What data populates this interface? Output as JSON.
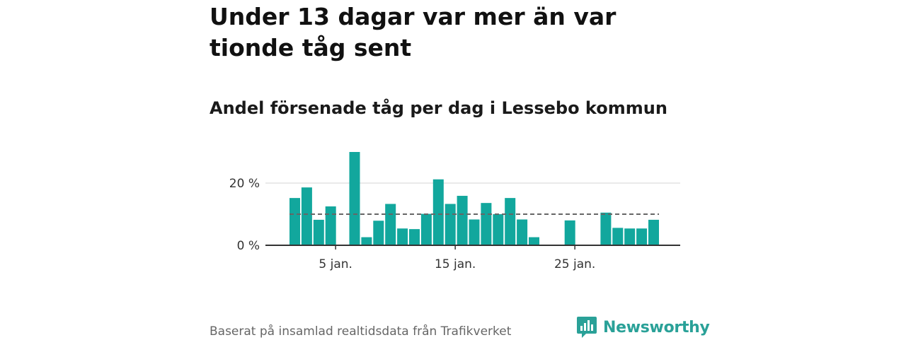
{
  "title": "Under 13 dagar var mer än var tionde tåg sent",
  "subtitle": "Andel försenade tåg per dag i Lessebo kommun",
  "footer": "Baserat på insamlad realtidsdata från Trafikverket",
  "brand": {
    "name": "Newsworthy",
    "icon": "newsworthy-logo-icon"
  },
  "colors": {
    "bar": "#12a79d",
    "reference_line": "#666666",
    "grid": "#dddddd",
    "axis": "#333333",
    "brand": "#2aa198"
  },
  "chart_data": {
    "type": "bar",
    "title": "Under 13 dagar var mer än var tionde tåg sent",
    "subtitle": "Andel försenade tåg per dag i Lessebo kommun",
    "xlabel": "",
    "ylabel": "",
    "x": [
      1,
      2,
      3,
      4,
      5,
      6,
      7,
      8,
      9,
      10,
      11,
      12,
      13,
      14,
      15,
      16,
      17,
      18,
      19,
      20,
      21,
      22,
      23,
      24,
      25,
      26,
      27,
      28,
      29,
      30,
      31
    ],
    "values": [
      15.2,
      18.6,
      8.2,
      12.5,
      null,
      30.0,
      2.6,
      7.9,
      13.3,
      5.4,
      5.2,
      10.1,
      21.2,
      13.3,
      15.9,
      8.3,
      13.6,
      10.0,
      15.2,
      8.3,
      2.6,
      null,
      null,
      8.0,
      null,
      null,
      10.5,
      5.6,
      5.4,
      5.4,
      8.2
    ],
    "reference_line": 10,
    "ylim": [
      0,
      30
    ],
    "yticks": [
      0,
      20
    ],
    "ytick_labels": [
      "0 %",
      "20 %"
    ],
    "xticks": [
      5,
      15,
      25
    ],
    "xtick_labels": [
      "5 jan.",
      "15 jan.",
      "25 jan."
    ],
    "grid": true,
    "legend": "none"
  }
}
